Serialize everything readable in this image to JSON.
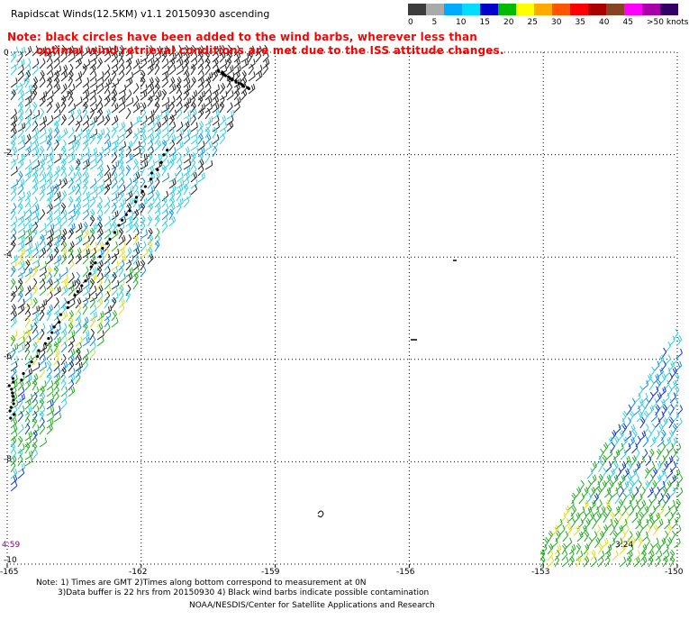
{
  "title": "Rapidscat Winds(12.5KM) v1.1 20150930 ascending",
  "note": {
    "line1": "Note: black circles have been added to the wind barbs, wherever less than",
    "line2": "optimal wind retrieval conditions are met due to the ISS attitude changes."
  },
  "scale": {
    "colors": [
      "#3c3c3c",
      "#aaaaaa",
      "#00aaff",
      "#00ddff",
      "#0000cc",
      "#00bb00",
      "#ffff00",
      "#ffaa00",
      "#ff5500",
      "#ff0000",
      "#aa0000",
      "#884422",
      "#ff00ff",
      "#aa00aa",
      "#330066"
    ],
    "labels": [
      "0",
      "5",
      "10",
      "15",
      "20",
      "25",
      "30",
      "35",
      "40",
      "45",
      ">50 knots"
    ],
    "unit": "knots"
  },
  "axes": {
    "lon_ticks": [
      "-165",
      "-162",
      "-159",
      "-156",
      "-153",
      "-150"
    ],
    "lat_ticks": [
      "0",
      "-2",
      "-4",
      "-6",
      "-8",
      "-10"
    ],
    "lon_range": [
      -165,
      -150
    ],
    "lat_range": [
      -10,
      0
    ]
  },
  "time_labels": [
    {
      "text": "4:59",
      "color": "#800080"
    },
    {
      "text": "3:24",
      "color": "#000000"
    }
  ],
  "footer": {
    "line1": "Note: 1) Times are GMT 2)Times along bottom correspond to measurement at 0N",
    "line2": "3)Data buffer is 22 hrs from 20150930 4) Black wind barbs indicate possible contamination",
    "line3": "NOAA/NESDIS/Center for Satellite Applications and Research"
  }
}
